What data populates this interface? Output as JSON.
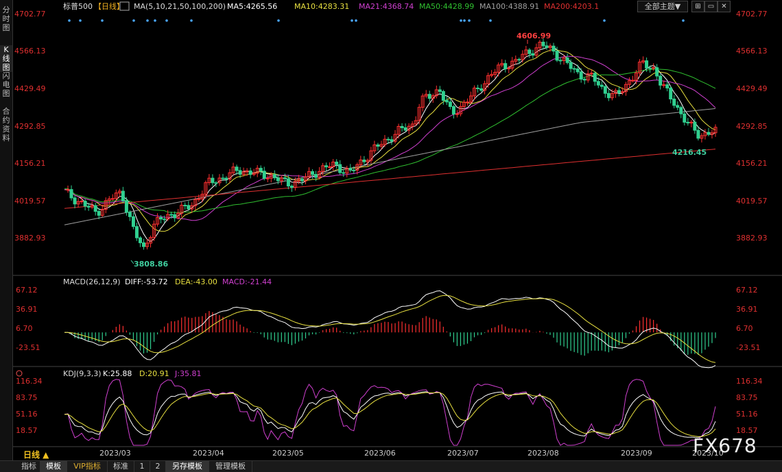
{
  "sidebar": {
    "tabs": [
      {
        "label": "分时图",
        "active": false
      },
      {
        "label": "K线图",
        "active": true
      },
      {
        "label": "闪电图",
        "active": false
      },
      {
        "label": "合约资料",
        "active": false
      }
    ]
  },
  "header": {
    "symbol": "标普500",
    "period": "【日线】",
    "ma_label": "MA(5,10,21,50,100,200)",
    "ma5": "MA5:4265.56",
    "ma10": "MA10:4283.31",
    "ma21": "MA21:4368.74",
    "ma50": "MA50:4428.99",
    "ma100": "MA100:4388.91",
    "ma200": "MA200:4203.1",
    "theme_button": "全部主题▼"
  },
  "colors": {
    "up": "#ff3030",
    "down": "#30d090",
    "ma5": "#ffffff",
    "ma10": "#e8e040",
    "ma21": "#d040d0",
    "ma50": "#30c030",
    "ma100": "#a0a0a0",
    "ma200": "#e03030",
    "axis_text": "#e03030"
  },
  "price_axis": {
    "ticks": [
      "4702.77",
      "4566.13",
      "4429.49",
      "4292.85",
      "4156.21",
      "4019.57",
      "3882.93"
    ]
  },
  "annotations": {
    "high": "4606.99",
    "low": "3808.86",
    "recent_low": "4216.45"
  },
  "macd": {
    "label": "MACD(26,12,9)",
    "diff": "DIFF:-53.72",
    "dea": "DEA:-43.00",
    "macd": "MACD:-21.44",
    "ticks": [
      "67.12",
      "36.91",
      "6.70",
      "-23.51"
    ]
  },
  "kdj": {
    "label": "KDJ(9,3,3)",
    "k": "K:25.88",
    "d": "D:20.91",
    "j": "J:35.81",
    "ticks": [
      "116.34",
      "83.75",
      "51.16",
      "18.57"
    ]
  },
  "time_axis": {
    "labels": [
      "2023/03",
      "2023/04",
      "2023/05",
      "2023/06",
      "2023/07",
      "2023/08",
      "2023/09",
      "2023/10"
    ]
  },
  "period_label": "日线 ▲",
  "bottom_tabs": [
    "指标",
    "模板",
    "VIP指标",
    "标准",
    "1",
    "2",
    "另存模板",
    "管理模板"
  ],
  "watermark": "FX678"
}
